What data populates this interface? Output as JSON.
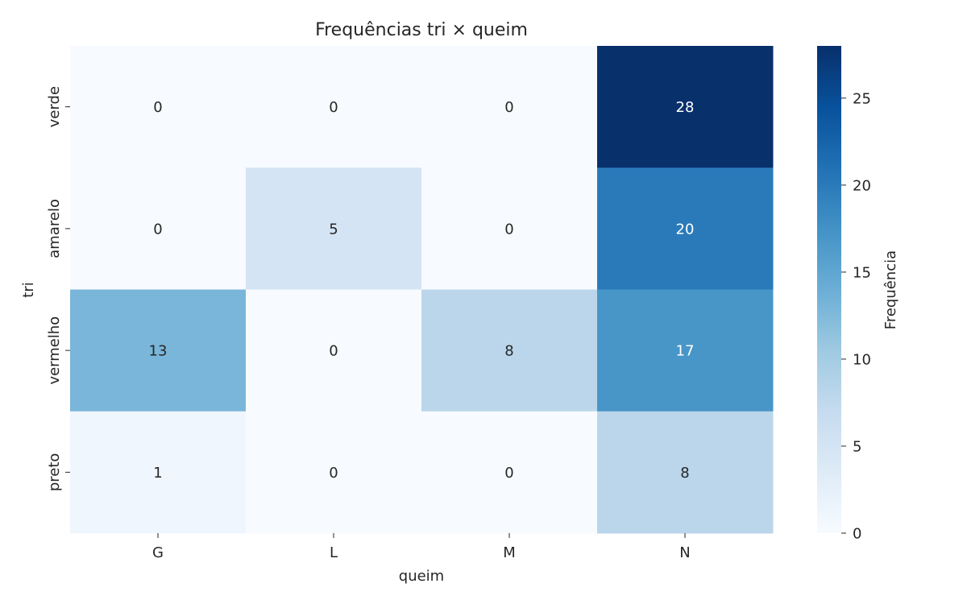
{
  "chart_data": {
    "type": "heatmap",
    "title": "Frequências tri × queim",
    "xlabel": "queim",
    "ylabel": "tri",
    "x_categories": [
      "G",
      "L",
      "M",
      "N"
    ],
    "y_categories": [
      "verde",
      "amarelo",
      "vermelho",
      "preto"
    ],
    "values": [
      [
        0,
        0,
        0,
        28
      ],
      [
        0,
        5,
        0,
        20
      ],
      [
        13,
        0,
        8,
        17
      ],
      [
        1,
        0,
        0,
        8
      ]
    ],
    "colorbar": {
      "label": "Frequência",
      "range": [
        0,
        28
      ],
      "ticks": [
        0,
        5,
        10,
        15,
        20,
        25
      ],
      "colormap": "Blues"
    }
  }
}
